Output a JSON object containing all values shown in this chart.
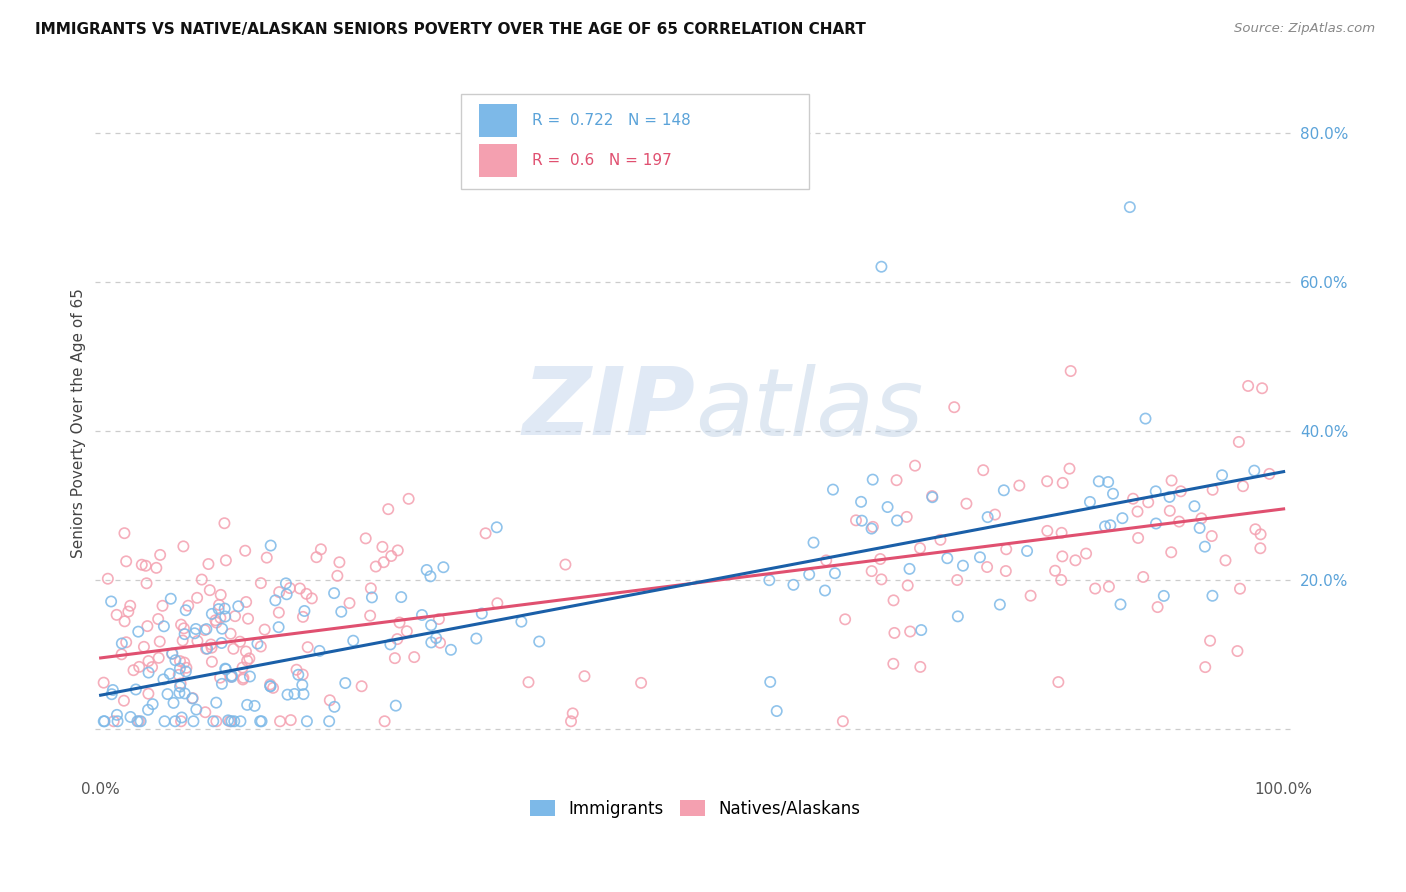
{
  "title": "IMMIGRANTS VS NATIVE/ALASKAN SENIORS POVERTY OVER THE AGE OF 65 CORRELATION CHART",
  "source": "Source: ZipAtlas.com",
  "ylabel": "Seniors Poverty Over the Age of 65",
  "immigrants_R": 0.722,
  "immigrants_N": 148,
  "natives_R": 0.6,
  "natives_N": 197,
  "immigrants_color": "#7db9e8",
  "natives_color": "#f4a0b0",
  "immigrants_line_color": "#1a5fa8",
  "natives_line_color": "#e05070",
  "background_color": "#ffffff",
  "grid_color": "#cccccc",
  "watermark_color": "#d0dff0",
  "right_tick_color": "#5ba3d9",
  "imm_intercept": 0.045,
  "imm_slope": 0.3,
  "nat_intercept": 0.095,
  "nat_slope": 0.2
}
